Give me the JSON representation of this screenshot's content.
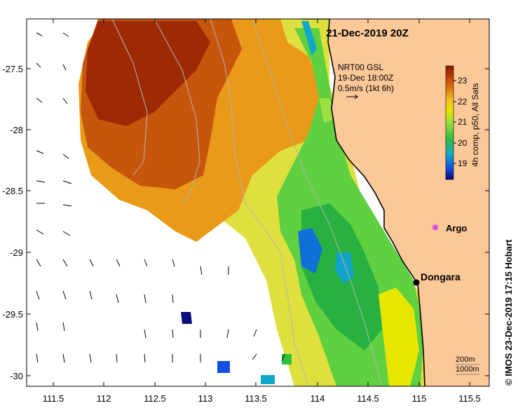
{
  "map": {
    "title": "21-Dec-2019 20Z",
    "credit": "© IMOS 23-Dec-2019 17:15 Hobart",
    "x_ticks": [
      "111.5",
      "112",
      "112.5",
      "113",
      "113.5",
      "114",
      "114.5",
      "115",
      "115.5"
    ],
    "y_ticks": [
      "-27.5",
      "-28",
      "-28.5",
      "-29",
      "-29.5",
      "-30"
    ],
    "current_legend": {
      "line1": "NRT00 GSL",
      "line2": "19-Dec 18:00Z",
      "line3": "0.5m/s (1kt 6h)"
    },
    "colorbar": {
      "label": "4h comp, p50, All Sats",
      "ticks": [
        "23",
        "22",
        "21",
        "20",
        "19"
      ],
      "colors": [
        "#8b1a00",
        "#c0400a",
        "#e07a10",
        "#f0c020",
        "#e6e600",
        "#9be040",
        "#30c040",
        "#10a8c8",
        "#1050e0",
        "#0a0a80"
      ]
    },
    "places": [
      {
        "name": "Argo",
        "color": "#e040e0"
      },
      {
        "name": "Dongara",
        "color": "#000000"
      }
    ],
    "contour_legend": {
      "line1": "200m",
      "line2": "1000m"
    },
    "land_color": "#fbc898"
  }
}
